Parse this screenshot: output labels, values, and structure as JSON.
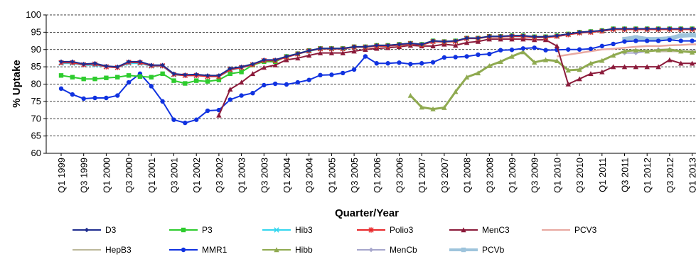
{
  "chart_data": {
    "type": "line",
    "ylabel": "% Uptake",
    "xlabel": "Quarter/Year",
    "ylim": [
      60,
      100
    ],
    "yticks": [
      60,
      65,
      70,
      75,
      80,
      85,
      90,
      95,
      100
    ],
    "grid": "horizontal dashed",
    "legend_position": "bottom",
    "x_tick_labels": [
      "Q1 1999",
      "Q3 1999",
      "Q1 2000",
      "Q3 2000",
      "Q1 2001",
      "Q3 2001",
      "Q1 2002",
      "Q3 2002",
      "Q1 2003",
      "Q3 2003",
      "Q1 2004",
      "Q3 2004",
      "Q1 2005",
      "Q3 2005",
      "Q1 2006",
      "Q3 2006",
      "Q1 2007",
      "Q3 2007",
      "Q1 2008",
      "Q3 2008",
      "Q1 2009",
      "Q3 2009",
      "Q1 2010",
      "Q3 2010",
      "Q1 2011",
      "Q3 2011",
      "Q1 2012",
      "Q3 2012",
      "Q1 2013",
      "Q3 2013"
    ],
    "x_start_year": 1999,
    "x_start_quarter": 1,
    "series": [
      {
        "name": "D3",
        "color": "#1f2d8f",
        "marker": "diamond",
        "start": 0,
        "values": [
          86.5,
          86.5,
          85.8,
          86,
          85.2,
          85,
          86.5,
          86.5,
          85.5,
          85.5,
          83,
          82.7,
          82.8,
          82.5,
          82.5,
          84.5,
          85,
          85.8,
          87,
          87,
          88,
          88.8,
          89.7,
          90.3,
          90.3,
          90.3,
          90.8,
          90.8,
          91.2,
          91.2,
          91.5,
          91.8,
          91.5,
          92.5,
          92.3,
          92.5,
          93.3,
          93.3,
          93.8,
          93.8,
          94,
          94,
          93.7,
          93.7,
          94,
          94.5,
          95,
          95.2,
          95.5,
          96,
          96,
          96,
          96,
          96,
          96,
          96,
          96,
          96,
          96
        ]
      },
      {
        "name": "P3",
        "color": "#2ecc2e",
        "marker": "square",
        "start": 0,
        "values": [
          82.5,
          82,
          81.5,
          81.5,
          81.8,
          82,
          82.5,
          82.2,
          82,
          83,
          81,
          80.2,
          81,
          80.8,
          81.2,
          83,
          83.5,
          85.5,
          86.5,
          86.5,
          88,
          88.8,
          89.7,
          90.3,
          90.3,
          90.3,
          90.8,
          90.8,
          91.2,
          91.2,
          91.5,
          91.8,
          91.5,
          92.5,
          92.3,
          92.5,
          93.3,
          93.3,
          93.8,
          93.8,
          94,
          94,
          93.7,
          93.7,
          94,
          94.5,
          95,
          95.2,
          95.5,
          96,
          96,
          96,
          96,
          96,
          96,
          96,
          96,
          96,
          96
        ]
      },
      {
        "name": "Hib3",
        "color": "#33d6ee",
        "marker": "x",
        "start": 0,
        "values": [
          86,
          86,
          85.5,
          85.5,
          85,
          84.8,
          86,
          86,
          85.2,
          85.2,
          82.7,
          82.5,
          82.5,
          82.2,
          82.2,
          84,
          84.7,
          85.5,
          86.7,
          86.8,
          87.8,
          88.7,
          89.5,
          90.2,
          90.2,
          90.2,
          90.7,
          90.7,
          91,
          91,
          91.3,
          91.7,
          91.3,
          92.3,
          92.2,
          92.3,
          93.2,
          93.2,
          93.7,
          93.7,
          93.8,
          93.8,
          93.5,
          93.5,
          93.8,
          94.3,
          94.8,
          95,
          95.3,
          95.8,
          95.8,
          95.8,
          95.8,
          95.8,
          95.8,
          95.8,
          95.8,
          95.8,
          95.8
        ]
      },
      {
        "name": "Polio3",
        "color": "#e8282a",
        "marker": "star",
        "start": 0,
        "values": [
          86.2,
          86.2,
          85.6,
          85.8,
          85,
          84.8,
          86.3,
          86.2,
          85.3,
          85.3,
          82.8,
          82.5,
          82.5,
          82.2,
          82.2,
          84.2,
          84.8,
          85.6,
          86.8,
          86.8,
          87.8,
          88.7,
          89.6,
          90.2,
          90.2,
          90.2,
          90.7,
          90.7,
          91,
          91,
          91.3,
          91.7,
          91.3,
          92.3,
          92.2,
          92.3,
          93.2,
          93.2,
          93.7,
          93.7,
          93.8,
          93.8,
          93.5,
          93.5,
          93.8,
          94.3,
          94.8,
          95,
          95.3,
          95.8,
          95.8,
          95.8,
          95.8,
          95.8,
          95.8,
          95.8,
          95.8,
          95.8,
          95.8
        ]
      },
      {
        "name": "MenC3",
        "color": "#8b1a3a",
        "marker": "triangle",
        "start": 14,
        "values": [
          71,
          78.5,
          80.5,
          83,
          84.8,
          85.5,
          87,
          87.5,
          88.3,
          89,
          89,
          89,
          89.5,
          90,
          90.3,
          90.5,
          90.8,
          91.2,
          91,
          91,
          91.5,
          91.2,
          92,
          92.3,
          93,
          93,
          93,
          93,
          92.8,
          92.8,
          91,
          80,
          81.5,
          83,
          83.5,
          85,
          85,
          85,
          85,
          85,
          87,
          86,
          86,
          86,
          86
        ]
      },
      {
        "name": "PCV3",
        "color": "#e8a8a0",
        "marker": "none",
        "start": 44,
        "values": [
          88,
          88.5,
          89,
          89.5,
          90,
          90.2,
          90.5,
          90.8,
          91,
          91,
          91.2,
          91.3,
          91.5,
          91.5,
          91.5
        ]
      },
      {
        "name": "HepB3",
        "color": "#bcb89a",
        "marker": "none",
        "start": 53,
        "values": [
          89.5,
          89.5,
          89.5,
          89.5,
          89.5,
          89.5
        ]
      },
      {
        "name": "MMR1",
        "color": "#1032e0",
        "marker": "circle",
        "start": 0,
        "values": [
          78.7,
          77,
          75.8,
          76,
          76,
          76.7,
          80.5,
          83,
          79.4,
          75,
          69.7,
          68.8,
          69.7,
          72.3,
          72.5,
          75.5,
          76.7,
          77.4,
          79.7,
          80.1,
          79.9,
          80.5,
          81.2,
          82.6,
          82.7,
          83.2,
          84.2,
          88,
          86,
          86,
          86.2,
          85.8,
          86,
          86.3,
          87.7,
          87.8,
          88,
          88.5,
          88.7,
          89.8,
          89.9,
          90.3,
          90.5,
          89.8,
          89.9,
          90,
          90,
          90.2,
          91,
          91.6,
          92.3,
          92.5,
          92.5,
          92.5,
          92.8,
          92.5,
          92.5,
          92.5,
          92.5
        ]
      },
      {
        "name": "Hibb",
        "color": "#8faa50",
        "marker": "triangle",
        "start": 31,
        "values": [
          76.7,
          73.3,
          72.8,
          73.2,
          77.8,
          82,
          83.2,
          85.3,
          86.5,
          88,
          89.3,
          86.3,
          87,
          86.7,
          84,
          84.2,
          86,
          86.8,
          88.3,
          89.5,
          89.8,
          89.5,
          89.8,
          90,
          89.5,
          89.2,
          89.3,
          89.5
        ]
      },
      {
        "name": "MenCb",
        "color": "#a6a6cc",
        "marker": "diamond",
        "start": 50,
        "values": [
          89,
          89,
          89.5,
          90,
          90,
          89.5,
          89.5,
          90,
          90.5
        ]
      },
      {
        "name": "PCVb",
        "color": "#9ec4dc",
        "marker": "square",
        "start": 50,
        "values": [
          93,
          93.5,
          93,
          93,
          93.2,
          94,
          94.2,
          93.8,
          94
        ]
      }
    ]
  }
}
